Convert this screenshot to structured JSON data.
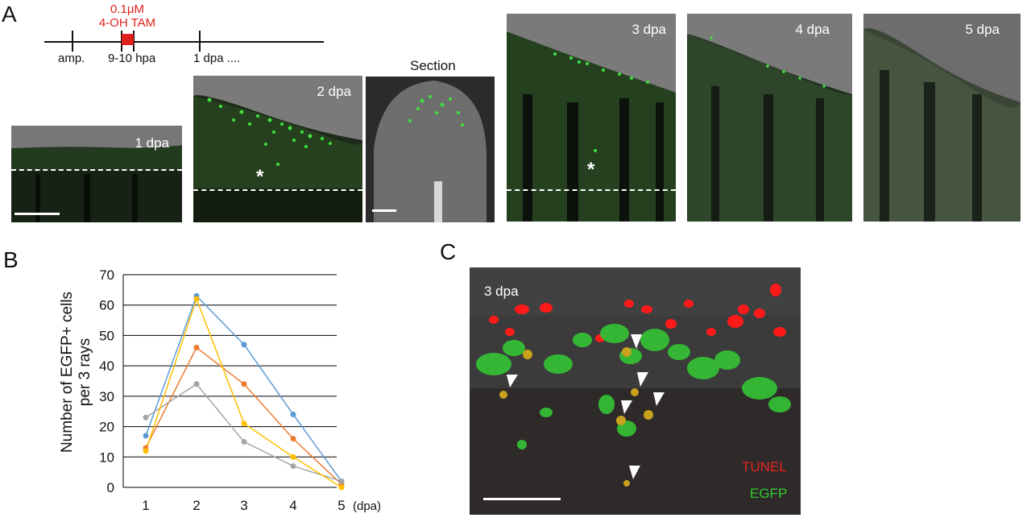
{
  "panel_letters": {
    "a": "A",
    "b": "B",
    "c": "C"
  },
  "timeline": {
    "treatment_conc": "0.1μM",
    "treatment_drug": "4-OH TAM",
    "ticks": [
      "amp.",
      "9-10 hpa",
      "1 dpa ...."
    ]
  },
  "panel_a": {
    "images": [
      {
        "label": "1 dpa"
      },
      {
        "label": "2 dpa"
      },
      {
        "label": "Section"
      },
      {
        "label": "3 dpa"
      },
      {
        "label": "4 dpa"
      },
      {
        "label": "5 dpa"
      }
    ],
    "asterisk": "*"
  },
  "panel_c": {
    "label": "3 dpa",
    "legend_red": "TUNEL",
    "legend_green": "EGFP"
  },
  "colors": {
    "series_blue": "#5b9bd5",
    "series_orange": "#ed7d31",
    "series_gray": "#a5a5a5",
    "series_yellow": "#ffc000",
    "egfp_green": "#2ecc2e",
    "tunel_red": "#e8231d"
  },
  "chart_data": {
    "type": "line",
    "ylabel_line1": "Number  of EGFP+ cells",
    "ylabel_line2": "per 3 rays",
    "xunit": "(dpa)",
    "x": [
      1,
      2,
      3,
      4,
      5
    ],
    "ylim": [
      0,
      70
    ],
    "yticks": [
      0,
      10,
      20,
      30,
      40,
      50,
      60,
      70
    ],
    "grid": true,
    "series": [
      {
        "color": "#5b9bd5",
        "values": [
          17,
          63,
          47,
          24,
          2
        ]
      },
      {
        "color": "#ed7d31",
        "values": [
          13,
          46,
          34,
          16,
          1
        ]
      },
      {
        "color": "#a5a5a5",
        "values": [
          23,
          34,
          15,
          7,
          2
        ]
      },
      {
        "color": "#ffc000",
        "values": [
          12,
          62,
          21,
          10,
          0
        ]
      }
    ]
  }
}
